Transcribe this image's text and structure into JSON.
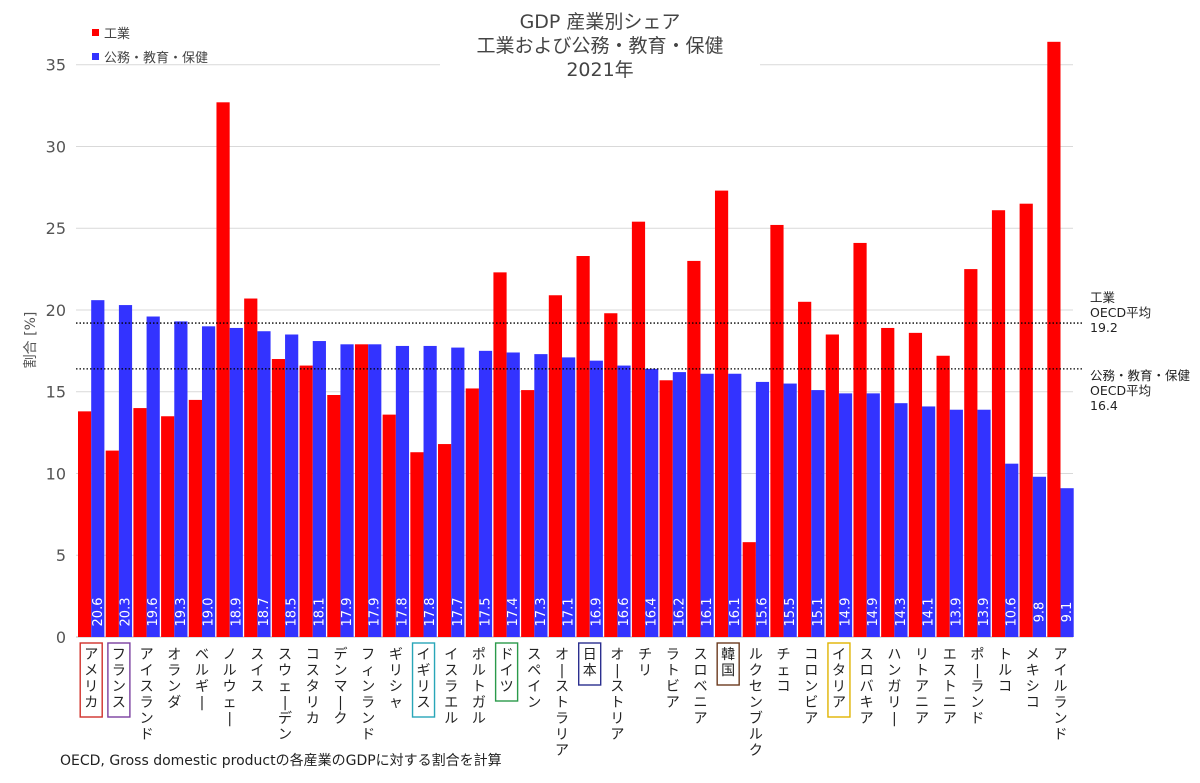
{
  "chart_data": {
    "type": "bar",
    "title": [
      "GDP 産業別シェア",
      "工業および公務・教育・保健",
      "2021年"
    ],
    "ylabel": "割合 [%]",
    "ylim": [
      0,
      37
    ],
    "yticks": [
      0,
      5,
      10,
      15,
      20,
      25,
      30,
      35
    ],
    "grid": true,
    "legend_position": "top-left",
    "categories": [
      "アメリカ",
      "フランス",
      "アイスランド",
      "オランダ",
      "ベルギー",
      "ノルウェー",
      "スイス",
      "スウェーデン",
      "コスタリカ",
      "デンマーク",
      "フィンランド",
      "ギリシャ",
      "イギリス",
      "イスラエル",
      "ポルトガル",
      "ドイツ",
      "スペイン",
      "オーストラリア",
      "日本",
      "オーストリア",
      "チリ",
      "ラトビア",
      "スロベニア",
      "韓国",
      "ルクセンブルク",
      "チェコ",
      "コロンビア",
      "イタリア",
      "スロバキア",
      "ハンガリー",
      "リトアニア",
      "エストニア",
      "ポーランド",
      "トルコ",
      "メキシコ",
      "アイルランド"
    ],
    "highlighted": [
      {
        "category": "アメリカ",
        "color": "#d0302a"
      },
      {
        "category": "フランス",
        "color": "#7a3fa0"
      },
      {
        "category": "イギリス",
        "color": "#28a6b8"
      },
      {
        "category": "ドイツ",
        "color": "#2a9a4a"
      },
      {
        "category": "日本",
        "color": "#2b2f8f"
      },
      {
        "category": "韓国",
        "color": "#6b3a1e"
      },
      {
        "category": "イタリア",
        "color": "#e0b400"
      }
    ],
    "series": [
      {
        "name": "工業",
        "color": "#ff0000",
        "values": [
          13.8,
          11.4,
          14.0,
          13.5,
          14.5,
          32.7,
          20.7,
          17.0,
          16.6,
          14.8,
          17.9,
          13.6,
          11.3,
          11.8,
          15.2,
          22.3,
          15.1,
          20.9,
          23.3,
          19.8,
          25.4,
          15.7,
          23.0,
          27.3,
          5.8,
          25.2,
          20.5,
          18.5,
          24.1,
          18.9,
          18.6,
          17.2,
          22.5,
          26.1,
          26.5,
          36.4
        ]
      },
      {
        "name": "公務・教育・保健",
        "color": "#3333ff",
        "values": [
          20.6,
          20.3,
          19.6,
          19.3,
          19.0,
          18.9,
          18.7,
          18.5,
          18.1,
          17.9,
          17.9,
          17.8,
          17.8,
          17.7,
          17.5,
          17.4,
          17.3,
          17.1,
          16.9,
          16.6,
          16.4,
          16.2,
          16.1,
          16.1,
          15.6,
          15.5,
          15.1,
          14.9,
          14.9,
          14.3,
          14.1,
          13.9,
          13.9,
          10.6,
          9.8,
          9.1
        ],
        "data_labels": [
          "20.6",
          "20.3",
          "19.6",
          "19.3",
          "19.0",
          "18.9",
          "18.7",
          "18.5",
          "18.1",
          "17.9",
          "17.9",
          "17.8",
          "17.8",
          "17.7",
          "17.5",
          "17.4",
          "17.3",
          "17.1",
          "16.9",
          "16.6",
          "16.4",
          "16.2",
          "16.1",
          "16.1",
          "15.6",
          "15.5",
          "15.1",
          "14.9",
          "14.9",
          "14.3",
          "14.1",
          "13.9",
          "13.9",
          "10.6",
          "9.8",
          "9.1"
        ]
      }
    ],
    "reference_lines": [
      {
        "series": "工業",
        "value": 19.2,
        "label_lines": [
          "工業",
          "OECD平均",
          "19.2"
        ]
      },
      {
        "series": "公務・教育・保健",
        "value": 16.4,
        "label_lines": [
          "公務・教育・保健",
          "OECD平均",
          "16.4"
        ]
      }
    ]
  },
  "footnote": "OECD, Gross domestic productの各産業のGDPに対する割合を計算"
}
